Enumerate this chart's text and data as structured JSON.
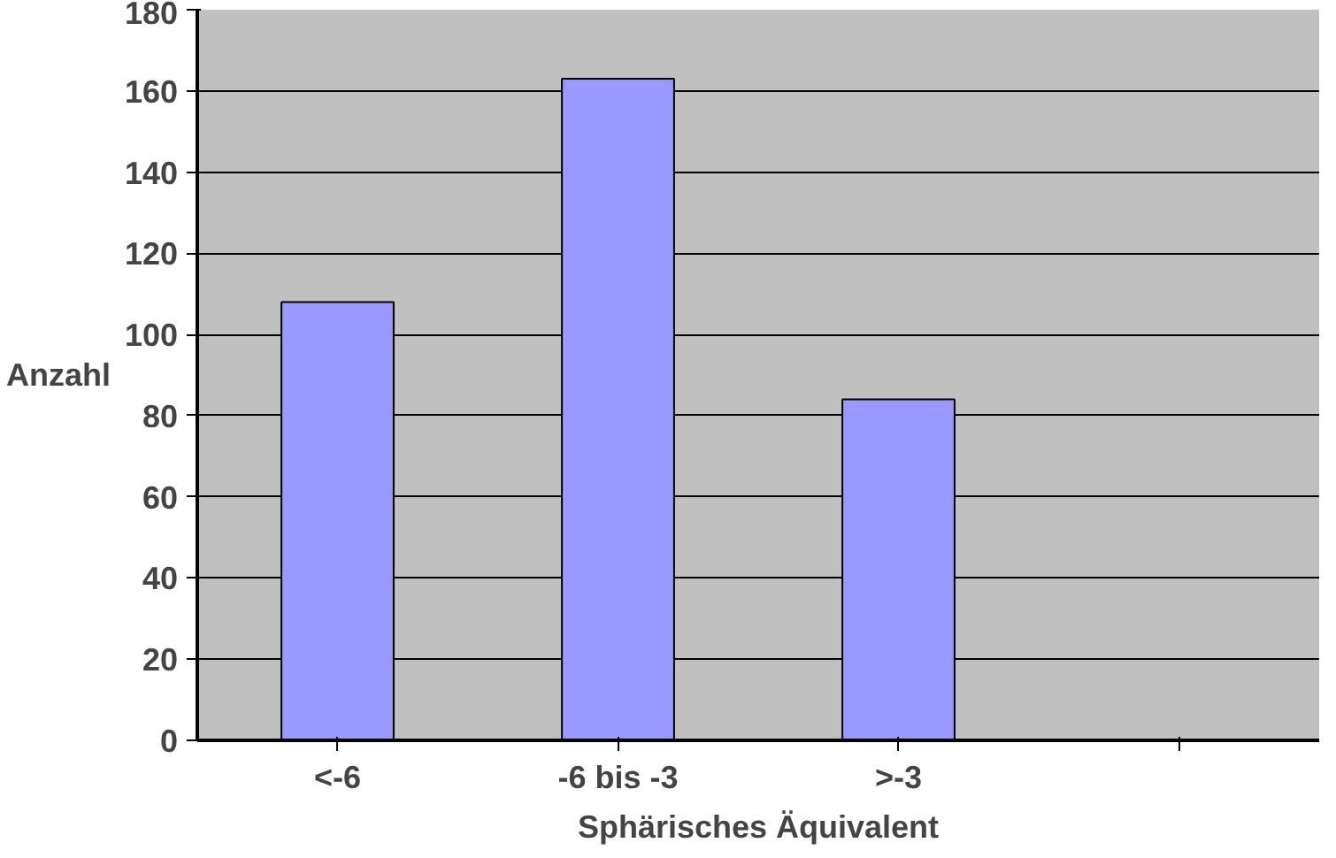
{
  "chart_data": {
    "type": "bar",
    "xlabel": "Sphärisches Äquivalent",
    "ylabel": "Anzahl",
    "categories": [
      "<-6",
      "-6 bis -3",
      ">-3",
      null
    ],
    "values": [
      108,
      163,
      84,
      null
    ],
    "color": "#9999ff",
    "ylim": [
      0,
      180
    ],
    "yticks": [
      0,
      20,
      40,
      60,
      80,
      100,
      120,
      140,
      160,
      180
    ],
    "grid": "y"
  }
}
